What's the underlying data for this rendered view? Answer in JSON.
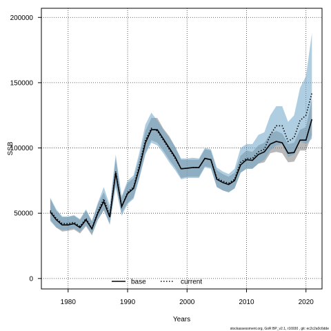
{
  "chart_data": {
    "type": "line",
    "xlabel": "Years",
    "ylabel": "SSB",
    "xlim": [
      1975.5,
      2022.7
    ],
    "ylim": [
      -8000,
      207000
    ],
    "xticks": [
      1980,
      1990,
      2000,
      2010,
      2020
    ],
    "yticks": [
      0,
      50000,
      100000,
      150000,
      200000
    ],
    "grid": true,
    "legend_position": "bottom-center",
    "x": [
      1977,
      1978,
      1979,
      1980,
      1981,
      1982,
      1983,
      1984,
      1985,
      1986,
      1987,
      1988,
      1989,
      1990,
      1991,
      1992,
      1993,
      1994,
      1995,
      1996,
      1997,
      1998,
      1999,
      2000,
      2001,
      2002,
      2003,
      2004,
      2005,
      2006,
      2007,
      2008,
      2009,
      2010,
      2011,
      2012,
      2013,
      2014,
      2015,
      2016,
      2017,
      2018,
      2019,
      2020,
      2021
    ],
    "series": [
      {
        "name": "base",
        "color": "#000000",
        "linestyle": "solid",
        "values": [
          51000,
          45000,
          41000,
          41000,
          42000,
          39000,
          45000,
          38000,
          50000,
          59000,
          47000,
          81000,
          55000,
          65000,
          69000,
          85000,
          104000,
          114000,
          114000,
          107000,
          100000,
          93000,
          84000,
          84500,
          85000,
          85000,
          92000,
          91000,
          76000,
          73500,
          72000,
          75000,
          87000,
          91000,
          90500,
          95000,
          97000,
          103000,
          105000,
          104000,
          96000,
          96500,
          106000,
          106000,
          122000
        ],
        "lower": [
          45000,
          39000,
          36000,
          36500,
          37500,
          34500,
          40000,
          33000,
          45000,
          52000,
          42000,
          72000,
          50000,
          58000,
          62000,
          78000,
          96000,
          106000,
          104000,
          98000,
          91000,
          85000,
          77000,
          78000,
          78000,
          78000,
          86000,
          85000,
          70000,
          67500,
          66000,
          69000,
          81000,
          84000,
          84000,
          88000,
          89000,
          96000,
          97000,
          96000,
          89000,
          89500,
          98000,
          98000,
          110000
        ],
        "upper": [
          61000,
          52000,
          47000,
          47000,
          48000,
          45000,
          52000,
          44000,
          57000,
          66000,
          53000,
          92000,
          62000,
          73000,
          77000,
          93000,
          113000,
          123000,
          123000,
          115000,
          109000,
          101000,
          91000,
          91000,
          91000,
          91000,
          99000,
          98000,
          83000,
          80000,
          78000,
          81000,
          94000,
          98000,
          97000,
          102000,
          104000,
          111000,
          113000,
          111000,
          103000,
          104000,
          114000,
          116000,
          137000
        ]
      },
      {
        "name": "current",
        "color": "#000000",
        "linestyle": "dotted",
        "values": [
          52000,
          46000,
          42000,
          42000,
          43000,
          40000,
          46000,
          38500,
          51000,
          61000,
          48000,
          82000,
          55000,
          66000,
          70000,
          87000,
          106000,
          115000,
          113000,
          106000,
          99000,
          92000,
          84000,
          84500,
          85000,
          85000,
          92000,
          91000,
          77000,
          74500,
          73000,
          76000,
          89000,
          92000,
          92000,
          97000,
          99000,
          110000,
          117000,
          117000,
          105000,
          108000,
          121000,
          125000,
          142000
        ],
        "lower": [
          44000,
          39000,
          37000,
          37500,
          38500,
          35500,
          41000,
          34000,
          45000,
          53000,
          41000,
          70000,
          48000,
          57000,
          61000,
          77000,
          95000,
          104000,
          102000,
          96000,
          89000,
          83000,
          76000,
          77000,
          77000,
          77000,
          85000,
          84000,
          70000,
          67500,
          66000,
          69000,
          81000,
          84000,
          84000,
          88000,
          91000,
          98000,
          102000,
          103000,
          93000,
          95000,
          105000,
          103000,
          107000
        ],
        "upper": [
          62000,
          53000,
          47500,
          47500,
          48500,
          45500,
          53000,
          44000,
          58000,
          70000,
          56000,
          95000,
          63000,
          75000,
          79000,
          97000,
          118000,
          127000,
          121000,
          114000,
          108000,
          101000,
          92000,
          92000,
          92500,
          92000,
          100000,
          99000,
          85000,
          82000,
          80000,
          84000,
          100000,
          103000,
          103000,
          110000,
          112000,
          125000,
          132000,
          132000,
          120000,
          125000,
          146000,
          155000,
          188000
        ]
      }
    ],
    "footer": "stockassessment.org, GoR BP_v2.1, r16930 , git: ec2c2a0c6dde"
  }
}
